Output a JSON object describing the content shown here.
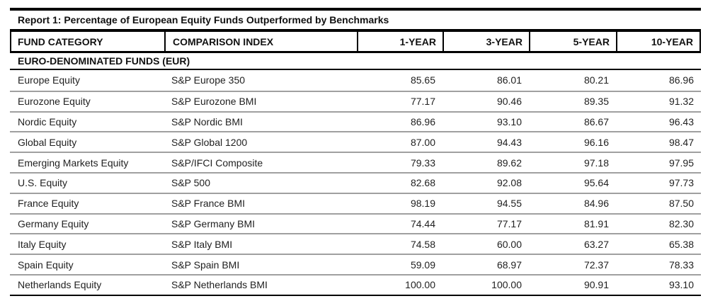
{
  "colors": {
    "table_border": "#000000",
    "row_divider": "#a0a0a0",
    "text": "#1a1a1a",
    "background": "#ffffff"
  },
  "report": {
    "title": "Report 1: Percentage of European Equity Funds Outperformed by Benchmarks",
    "columns": [
      "FUND CATEGORY",
      "COMPARISON INDEX",
      "1-YEAR",
      "3-YEAR",
      "5-YEAR",
      "10-YEAR"
    ],
    "section_header": "EURO-DENOMINATED FUNDS (EUR)",
    "rows": [
      {
        "category": "Europe Equity",
        "index": "S&P Europe 350",
        "y1": "85.65",
        "y3": "86.01",
        "y5": "80.21",
        "y10": "86.96"
      },
      {
        "category": "Eurozone Equity",
        "index": "S&P Eurozone BMI",
        "y1": "77.17",
        "y3": "90.46",
        "y5": "89.35",
        "y10": "91.32"
      },
      {
        "category": "Nordic Equity",
        "index": "S&P Nordic BMI",
        "y1": "86.96",
        "y3": "93.10",
        "y5": "86.67",
        "y10": "96.43"
      },
      {
        "category": "Global Equity",
        "index": "S&P Global 1200",
        "y1": "87.00",
        "y3": "94.43",
        "y5": "96.16",
        "y10": "98.47"
      },
      {
        "category": "Emerging Markets Equity",
        "index": "S&P/IFCI Composite",
        "y1": "79.33",
        "y3": "89.62",
        "y5": "97.18",
        "y10": "97.95"
      },
      {
        "category": "U.S. Equity",
        "index": "S&P 500",
        "y1": "82.68",
        "y3": "92.08",
        "y5": "95.64",
        "y10": "97.73"
      },
      {
        "category": "France Equity",
        "index": "S&P France BMI",
        "y1": "98.19",
        "y3": "94.55",
        "y5": "84.96",
        "y10": "87.50"
      },
      {
        "category": "Germany Equity",
        "index": "S&P Germany BMI",
        "y1": "74.44",
        "y3": "77.17",
        "y5": "81.91",
        "y10": "82.30"
      },
      {
        "category": "Italy Equity",
        "index": "S&P Italy BMI",
        "y1": "74.58",
        "y3": "60.00",
        "y5": "63.27",
        "y10": "65.38"
      },
      {
        "category": "Spain Equity",
        "index": "S&P Spain BMI",
        "y1": "59.09",
        "y3": "68.97",
        "y5": "72.37",
        "y10": "78.33"
      },
      {
        "category": "Netherlands Equity",
        "index": "S&P Netherlands BMI",
        "y1": "100.00",
        "y3": "100.00",
        "y5": "90.91",
        "y10": "93.10"
      }
    ]
  }
}
